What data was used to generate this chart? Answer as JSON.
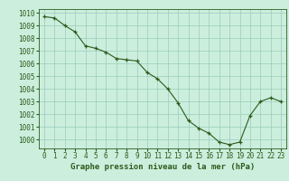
{
  "x": [
    0,
    1,
    2,
    3,
    4,
    5,
    6,
    7,
    8,
    9,
    10,
    11,
    12,
    13,
    14,
    15,
    16,
    17,
    18,
    19,
    20,
    21,
    22,
    23
  ],
  "y": [
    1009.7,
    1009.6,
    1009.0,
    1008.5,
    1007.4,
    1007.2,
    1006.9,
    1006.4,
    1006.3,
    1006.2,
    1005.3,
    1004.8,
    1004.0,
    1002.9,
    1001.5,
    1000.9,
    1000.5,
    999.8,
    999.6,
    999.8,
    1001.9,
    1003.0,
    1003.3,
    1003.0
  ],
  "ylim": [
    999.3,
    1010.3
  ],
  "yticks": [
    1000,
    1001,
    1002,
    1003,
    1004,
    1005,
    1006,
    1007,
    1008,
    1009,
    1010
  ],
  "xticks": [
    0,
    1,
    2,
    3,
    4,
    5,
    6,
    7,
    8,
    9,
    10,
    11,
    12,
    13,
    14,
    15,
    16,
    17,
    18,
    19,
    20,
    21,
    22,
    23
  ],
  "line_color": "#2d5a1b",
  "marker_color": "#2d5a1b",
  "bg_color": "#cceedd",
  "grid_color": "#99ccbb",
  "text_color": "#2d5a1b",
  "xlabel": "Graphe pression niveau de la mer (hPa)",
  "label_fontsize": 6.5,
  "tick_fontsize": 5.5
}
